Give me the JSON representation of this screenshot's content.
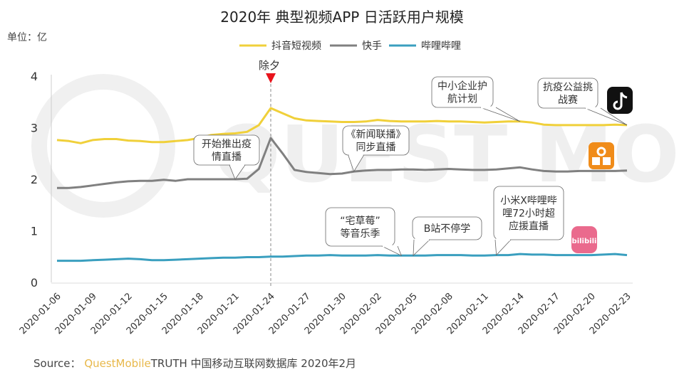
{
  "unit_label": "单位：亿",
  "source": {
    "prefix": "Source：",
    "brand": "QuestMobile",
    "rest": "TRUTH 中国移动互联网数据库 2020年2月"
  },
  "watermark": "QUEST MOBILE",
  "chart_data": {
    "type": "line",
    "title": "2020年 典型视频APP 日活跃用户规模",
    "xlabel": "",
    "ylabel": "单位：亿",
    "ylim": [
      0,
      4
    ],
    "yticks": [
      "0",
      "1",
      "2",
      "3",
      "4"
    ],
    "x_start": "2020-01-06",
    "x_end": "2020-02-23",
    "xticks": [
      "2020-01-06",
      "2020-01-09",
      "2020-01-12",
      "2020-01-15",
      "2020-01-18",
      "2020-01-21",
      "2020-01-24",
      "2020-01-27",
      "2020-01-30",
      "2020-02-02",
      "2020-02-05",
      "2020-02-08",
      "2020-02-11",
      "2020-02-14",
      "2020-02-17",
      "2020-02-20",
      "2020-02-23"
    ],
    "grid": false,
    "legend_position": "top-center",
    "series": [
      {
        "name": "抖音短视频",
        "color": "#f0d03a",
        "icon": "douyin-logo",
        "values": [
          2.76,
          2.74,
          2.7,
          2.76,
          2.78,
          2.78,
          2.75,
          2.74,
          2.72,
          2.72,
          2.74,
          2.76,
          2.8,
          2.86,
          2.88,
          2.89,
          2.92,
          3.05,
          3.38,
          3.28,
          3.18,
          3.14,
          3.13,
          3.12,
          3.11,
          3.11,
          3.12,
          3.15,
          3.13,
          3.12,
          3.12,
          3.12,
          3.13,
          3.12,
          3.12,
          3.11,
          3.1,
          3.11,
          3.12,
          3.12,
          3.1,
          3.06,
          3.05,
          3.05,
          3.05,
          3.05,
          3.05,
          3.06,
          3.05
        ]
      },
      {
        "name": "快手",
        "color": "#808080",
        "icon": "kuaishou-logo",
        "values": [
          1.83,
          1.83,
          1.85,
          1.88,
          1.91,
          1.94,
          1.96,
          1.97,
          1.97,
          1.99,
          1.97,
          2.0,
          2.0,
          2.0,
          2.0,
          2.0,
          2.01,
          2.2,
          2.8,
          2.5,
          2.18,
          2.14,
          2.12,
          2.1,
          2.11,
          2.15,
          2.17,
          2.18,
          2.18,
          2.19,
          2.19,
          2.18,
          2.19,
          2.2,
          2.19,
          2.18,
          2.18,
          2.19,
          2.21,
          2.23,
          2.19,
          2.16,
          2.15,
          2.15,
          2.16,
          2.16,
          2.16,
          2.16,
          2.17
        ]
      },
      {
        "name": "哔哩哔哩",
        "color": "#3a9fbf",
        "icon": "bilibili-logo",
        "values": [
          0.42,
          0.42,
          0.42,
          0.43,
          0.44,
          0.45,
          0.46,
          0.45,
          0.43,
          0.43,
          0.44,
          0.45,
          0.46,
          0.47,
          0.48,
          0.48,
          0.49,
          0.49,
          0.5,
          0.5,
          0.51,
          0.52,
          0.52,
          0.53,
          0.52,
          0.52,
          0.52,
          0.53,
          0.52,
          0.52,
          0.52,
          0.52,
          0.53,
          0.53,
          0.53,
          0.52,
          0.52,
          0.53,
          0.53,
          0.55,
          0.54,
          0.54,
          0.53,
          0.53,
          0.53,
          0.53,
          0.54,
          0.55,
          0.53
        ]
      }
    ],
    "markers": [
      {
        "date": "2020-01-24",
        "label": "除夕",
        "color": "#e8141c"
      }
    ],
    "annotations": [
      {
        "lines": [
          "开始推出疫",
          "情直播"
        ],
        "date": "2020-01-21",
        "series": 1
      },
      {
        "lines": [
          "《新闻联播》",
          "同步直播"
        ],
        "date": "2020-01-31",
        "series": 1
      },
      {
        "lines": [
          "中小企业护",
          "航计划"
        ],
        "date": "2020-02-14",
        "series": 0
      },
      {
        "lines": [
          "抗疫公益挑",
          "战赛"
        ],
        "date": "2020-02-23",
        "series": 0
      },
      {
        "lines": [
          "“宅草莓”",
          "等音乐季"
        ],
        "date": "2020-02-04",
        "series": 2
      },
      {
        "lines": [
          "B站不停学"
        ],
        "date": "2020-02-05",
        "series": 2
      },
      {
        "lines": [
          "小米X哔哩哔",
          "哩72小时超",
          "应援直播"
        ],
        "date": "2020-02-12",
        "series": 2
      }
    ]
  }
}
